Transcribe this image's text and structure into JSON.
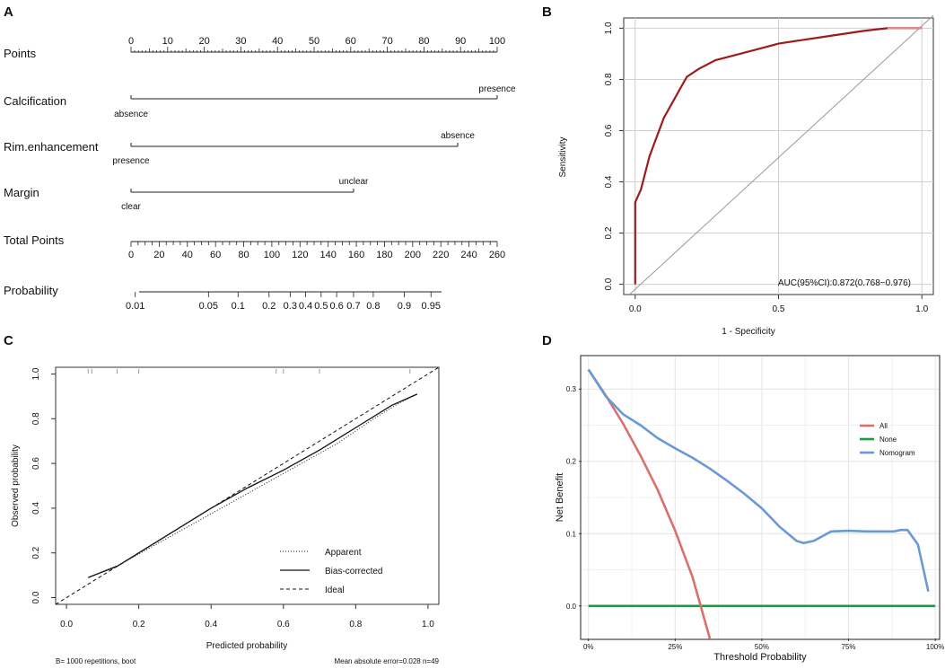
{
  "chart_data": [
    {
      "panel": "A",
      "type": "nomogram",
      "rows": [
        {
          "label": "Points",
          "ticks": [
            "0",
            "10",
            "20",
            "30",
            "40",
            "50",
            "60",
            "70",
            "80",
            "90",
            "100"
          ]
        },
        {
          "label": "Calcification",
          "low": "absence",
          "high": "presence",
          "points": 100
        },
        {
          "label": "Rim.enhancement",
          "low": "presence",
          "high": "absence",
          "points": 90
        },
        {
          "label": "Margin",
          "low": "clear",
          "high": "unclear",
          "points": 61
        },
        {
          "label": "Total Points",
          "ticks": [
            "0",
            "20",
            "40",
            "60",
            "80",
            "100",
            "120",
            "140",
            "160",
            "180",
            "200",
            "220",
            "240",
            "260"
          ]
        },
        {
          "label": "Probability",
          "ticks": [
            {
              "label": "0.01",
              "points": 3
            },
            {
              "label": "0.05",
              "points": 55
            },
            {
              "label": "0.1",
              "points": 76
            },
            {
              "label": "0.2",
              "points": 98
            },
            {
              "label": "0.3",
              "points": 113
            },
            {
              "label": "0.4",
              "points": 124
            },
            {
              "label": "0.5",
              "points": 135
            },
            {
              "label": "0.6",
              "points": 146
            },
            {
              "label": "0.7",
              "points": 158
            },
            {
              "label": "0.8",
              "points": 172
            },
            {
              "label": "0.9",
              "points": 194
            },
            {
              "label": "0.95",
              "points": 213
            }
          ]
        }
      ]
    },
    {
      "panel": "B",
      "type": "line",
      "title": "",
      "xlabel": "1 - Specificity",
      "ylabel": "Sensitivity",
      "xlim": [
        -0.04,
        1.04
      ],
      "ylim": [
        -0.04,
        1.04
      ],
      "xticks": [
        "0.0",
        "0.5",
        "1.0"
      ],
      "yticks": [
        "0.0",
        "0.2",
        "0.4",
        "0.6",
        "0.8",
        "1.0"
      ],
      "roc": {
        "x": [
          0,
          0,
          0.02,
          0.05,
          0.1,
          0.18,
          0.22,
          0.28,
          0.4,
          0.5,
          0.65,
          0.8,
          0.88,
          1.0
        ],
        "y": [
          0,
          0.32,
          0.37,
          0.5,
          0.65,
          0.81,
          0.84,
          0.875,
          0.91,
          0.94,
          0.965,
          0.99,
          1.0,
          1.0
        ]
      },
      "annotation": "AUC(95%CI):0.872(0.768−0.976)"
    },
    {
      "panel": "C",
      "type": "line",
      "xlabel": "Predicted probability",
      "ylabel": "Observed probability",
      "xlim": [
        -0.03,
        1.03
      ],
      "ylim": [
        -0.03,
        1.03
      ],
      "xticks": [
        "0.0",
        "0.2",
        "0.4",
        "0.6",
        "0.8",
        "1.0"
      ],
      "yticks": [
        "0.0",
        "0.2",
        "0.4",
        "0.6",
        "0.8",
        "1.0"
      ],
      "series": [
        {
          "name": "Apparent",
          "x": [
            0.06,
            0.15,
            0.25,
            0.35,
            0.45,
            0.55,
            0.65,
            0.75,
            0.85,
            0.92,
            0.97
          ],
          "y": [
            0.09,
            0.15,
            0.24,
            0.33,
            0.42,
            0.51,
            0.6,
            0.69,
            0.8,
            0.87,
            0.91
          ]
        },
        {
          "name": "Bias-corrected",
          "x": [
            0.06,
            0.14,
            0.2,
            0.3,
            0.4,
            0.5,
            0.6,
            0.7,
            0.8,
            0.9,
            0.97
          ],
          "y": [
            0.09,
            0.14,
            0.2,
            0.3,
            0.4,
            0.49,
            0.57,
            0.66,
            0.76,
            0.86,
            0.91
          ]
        },
        {
          "name": "Ideal",
          "x": [
            -0.03,
            1.03
          ],
          "y": [
            -0.03,
            1.03
          ]
        }
      ],
      "rug": [
        0.06,
        0.07,
        0.14,
        0.2,
        0.58,
        0.6,
        0.7,
        0.95
      ],
      "footer_left": "B= 1000 repetitions, boot",
      "footer_right": "Mean absolute error=0.028 n=49"
    },
    {
      "panel": "D",
      "type": "line",
      "xlabel": "Threshold Probability",
      "ylabel": "Net Benefit",
      "xlim": [
        -0.02,
        1.01
      ],
      "ylim": [
        -0.045,
        0.345
      ],
      "xticks": [
        "0%",
        "25%",
        "50%",
        "75%",
        "100%"
      ],
      "yticks": [
        "0.0",
        "0.1",
        "0.2",
        "0.3"
      ],
      "series": [
        {
          "name": "All",
          "color": "#d9706b",
          "x": [
            0,
            0.05,
            0.1,
            0.15,
            0.2,
            0.25,
            0.3,
            0.35
          ],
          "y": [
            0.327,
            0.291,
            0.252,
            0.208,
            0.16,
            0.104,
            0.04,
            -0.045
          ]
        },
        {
          "name": "None",
          "color": "#1f9a3a",
          "x": [
            0,
            1.0
          ],
          "y": [
            0,
            0
          ]
        },
        {
          "name": "Nomogram",
          "color": "#6a9ad6",
          "x": [
            0,
            0.05,
            0.1,
            0.15,
            0.2,
            0.25,
            0.3,
            0.35,
            0.4,
            0.45,
            0.5,
            0.55,
            0.58,
            0.6,
            0.62,
            0.65,
            0.7,
            0.75,
            0.8,
            0.85,
            0.88,
            0.9,
            0.92,
            0.95,
            0.98
          ],
          "y": [
            0.327,
            0.29,
            0.265,
            0.25,
            0.232,
            0.218,
            0.205,
            0.19,
            0.173,
            0.155,
            0.135,
            0.11,
            0.098,
            0.09,
            0.087,
            0.09,
            0.103,
            0.104,
            0.103,
            0.103,
            0.103,
            0.105,
            0.105,
            0.085,
            0.02
          ]
        }
      ],
      "legend": [
        "All",
        "None",
        "Nomogram"
      ],
      "legend_position": "right"
    }
  ],
  "panel_labels": [
    "A",
    "B",
    "C",
    "D"
  ],
  "panel_d_colors": {
    "all": "#d9706b",
    "none": "#1f9a3a",
    "nomogram": "#6a9ad6"
  },
  "roc_color": "#9b1c1c"
}
